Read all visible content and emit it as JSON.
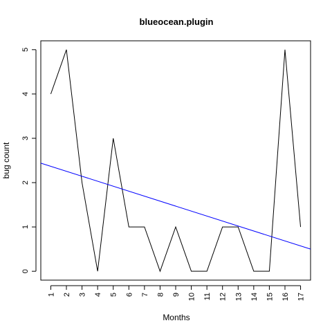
{
  "chart_data": {
    "type": "line",
    "title": "blueocean.plugin",
    "xlabel": "Months",
    "ylabel": "bug count",
    "x": [
      1,
      2,
      3,
      4,
      5,
      6,
      7,
      8,
      9,
      10,
      11,
      12,
      13,
      14,
      15,
      16,
      17
    ],
    "x_tick_labels": [
      "1",
      "2",
      "3",
      "4",
      "5",
      "6",
      "7",
      "8",
      "9",
      "10",
      "11",
      "12",
      "13",
      "14",
      "15",
      "16",
      "17"
    ],
    "y_ticks": [
      0,
      1,
      2,
      3,
      4,
      5
    ],
    "xlim": [
      0.36,
      17.64
    ],
    "ylim": [
      -0.2,
      5.2
    ],
    "grid": false,
    "series": [
      {
        "values": [
          4,
          5,
          2,
          0,
          3,
          1,
          1,
          0,
          1,
          0,
          0,
          1,
          1,
          0,
          0,
          5,
          1
        ],
        "color": "#000000"
      }
    ],
    "trend_line": {
      "x": [
        0.36,
        17.64
      ],
      "y": [
        2.44,
        0.5
      ],
      "color": "#0000ff"
    }
  }
}
